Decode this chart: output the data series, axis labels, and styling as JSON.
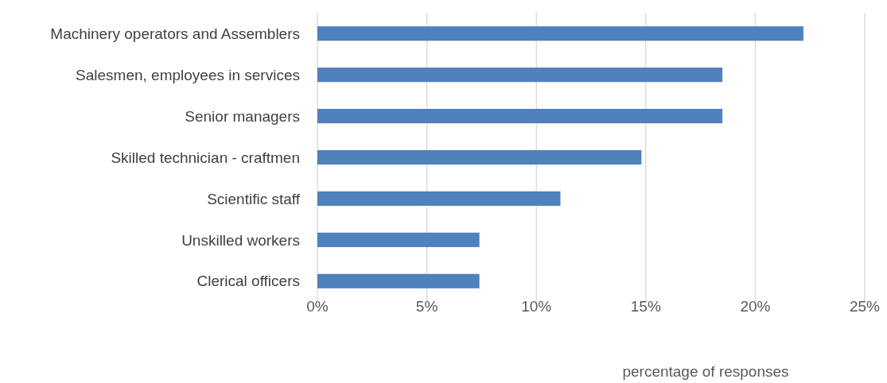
{
  "chart_data": {
    "type": "bar",
    "orientation": "horizontal",
    "xlabel": "percentage of responses",
    "categories": [
      "Machinery operators and Assemblers",
      "Salesmen, employees in services",
      "Senior managers",
      "Skilled technician - craftmen",
      "Scientific staff",
      "Unskilled workers",
      "Clerical officers"
    ],
    "values": [
      22.2,
      18.5,
      18.5,
      14.8,
      11.1,
      7.4,
      7.4
    ],
    "color": "#4f81bd",
    "xlim": [
      0,
      25
    ],
    "xticks": [
      {
        "value": 0,
        "label": "0%"
      },
      {
        "value": 5,
        "label": "5%"
      },
      {
        "value": 10,
        "label": "10%"
      },
      {
        "value": 15,
        "label": "15%"
      },
      {
        "value": 20,
        "label": "20%"
      },
      {
        "value": 25,
        "label": "25%"
      }
    ],
    "grid": "x"
  }
}
